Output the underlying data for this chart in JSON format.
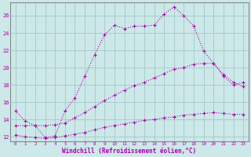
{
  "xlabel": "Windchill (Refroidissement éolien,°C)",
  "bg_color": "#cce8e8",
  "line_color": "#aa00aa",
  "grid_color": "#aacccc",
  "spine_color": "#888888",
  "x_ticks": [
    0,
    1,
    2,
    3,
    4,
    5,
    6,
    7,
    8,
    9,
    10,
    11,
    12,
    13,
    14,
    15,
    16,
    17,
    18,
    19,
    20,
    21,
    22,
    23
  ],
  "y_ticks": [
    12,
    14,
    16,
    18,
    20,
    22,
    24,
    26
  ],
  "ylim": [
    11.5,
    27.5
  ],
  "xlim": [
    -0.5,
    23.5
  ],
  "series1_x": [
    0,
    1,
    2,
    3,
    4,
    5,
    6,
    7,
    8,
    9,
    10,
    11,
    12,
    13,
    14,
    15,
    16,
    17,
    18,
    19,
    20,
    21,
    22,
    23
  ],
  "series1_y": [
    15.0,
    13.8,
    13.3,
    11.9,
    12.1,
    15.0,
    16.5,
    19.0,
    21.5,
    23.8,
    24.9,
    24.5,
    24.8,
    24.8,
    24.9,
    26.2,
    27.0,
    26.0,
    24.8,
    21.9,
    20.5,
    19.0,
    18.0,
    18.3
  ],
  "series2_x": [
    0,
    1,
    2,
    3,
    4,
    5,
    6,
    7,
    8,
    9,
    10,
    11,
    12,
    13,
    14,
    15,
    16,
    17,
    18,
    19,
    20,
    21,
    22,
    23
  ],
  "series2_y": [
    13.3,
    13.3,
    13.3,
    13.3,
    13.4,
    13.6,
    14.2,
    14.8,
    15.5,
    16.2,
    16.8,
    17.4,
    17.9,
    18.3,
    18.8,
    19.3,
    19.8,
    20.0,
    20.4,
    20.5,
    20.5,
    19.2,
    18.3,
    17.8
  ],
  "series3_x": [
    0,
    1,
    2,
    3,
    4,
    5,
    6,
    7,
    8,
    9,
    10,
    11,
    12,
    13,
    14,
    15,
    16,
    17,
    18,
    19,
    20,
    21,
    22,
    23
  ],
  "series3_y": [
    12.2,
    12.0,
    11.9,
    11.8,
    11.9,
    12.1,
    12.3,
    12.5,
    12.8,
    13.1,
    13.3,
    13.5,
    13.7,
    13.9,
    14.0,
    14.2,
    14.3,
    14.5,
    14.6,
    14.7,
    14.8,
    14.7,
    14.6,
    14.6
  ]
}
